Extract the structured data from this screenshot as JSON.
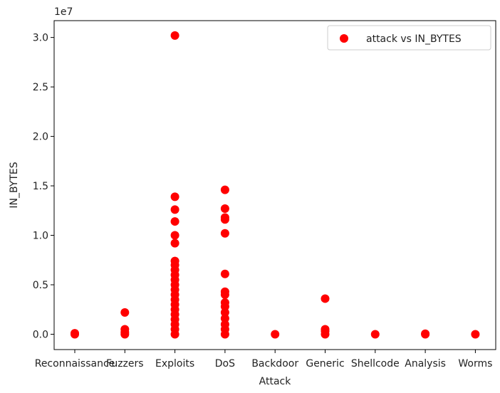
{
  "chart_data": {
    "type": "scatter",
    "xlabel": "Attack",
    "ylabel": "IN_BYTES",
    "y_offset_label": "1e7",
    "y_multiplier": 10000000,
    "categories": [
      "Reconnaissance",
      "Fuzzers",
      "Exploits",
      "DoS",
      "Backdoor",
      "Generic",
      "Shellcode",
      "Analysis",
      "Worms"
    ],
    "yticks": [
      0.0,
      0.5,
      1.0,
      1.5,
      2.0,
      2.5,
      3.0
    ],
    "ytick_labels": [
      "0.0",
      "0.5",
      "1.0",
      "1.5",
      "2.0",
      "2.5",
      "3.0"
    ],
    "ylim": [
      -0.155,
      3.17
    ],
    "grid": false,
    "legend_position": "top-right",
    "series": [
      {
        "name": "attack vs IN_BYTES",
        "color": "#ff0000",
        "marker": "circle",
        "points": [
          [
            "Reconnaissance",
            0.0
          ],
          [
            "Reconnaissance",
            0.01
          ],
          [
            "Fuzzers",
            0.0
          ],
          [
            "Fuzzers",
            0.02
          ],
          [
            "Fuzzers",
            0.05
          ],
          [
            "Fuzzers",
            0.22
          ],
          [
            "Exploits",
            0.0
          ],
          [
            "Exploits",
            0.05
          ],
          [
            "Exploits",
            0.1
          ],
          [
            "Exploits",
            0.15
          ],
          [
            "Exploits",
            0.2
          ],
          [
            "Exploits",
            0.25
          ],
          [
            "Exploits",
            0.3
          ],
          [
            "Exploits",
            0.35
          ],
          [
            "Exploits",
            0.4
          ],
          [
            "Exploits",
            0.45
          ],
          [
            "Exploits",
            0.5
          ],
          [
            "Exploits",
            0.55
          ],
          [
            "Exploits",
            0.6
          ],
          [
            "Exploits",
            0.65
          ],
          [
            "Exploits",
            0.7
          ],
          [
            "Exploits",
            0.74
          ],
          [
            "Exploits",
            0.92
          ],
          [
            "Exploits",
            1.0
          ],
          [
            "Exploits",
            1.14
          ],
          [
            "Exploits",
            1.26
          ],
          [
            "Exploits",
            1.39
          ],
          [
            "Exploits",
            3.02
          ],
          [
            "DoS",
            0.0
          ],
          [
            "DoS",
            0.05
          ],
          [
            "DoS",
            0.1
          ],
          [
            "DoS",
            0.16
          ],
          [
            "DoS",
            0.22
          ],
          [
            "DoS",
            0.28
          ],
          [
            "DoS",
            0.32
          ],
          [
            "DoS",
            0.4
          ],
          [
            "DoS",
            0.43
          ],
          [
            "DoS",
            0.61
          ],
          [
            "DoS",
            1.02
          ],
          [
            "DoS",
            1.16
          ],
          [
            "DoS",
            1.18
          ],
          [
            "DoS",
            1.27
          ],
          [
            "DoS",
            1.46
          ],
          [
            "Backdoor",
            0.0
          ],
          [
            "Generic",
            0.0
          ],
          [
            "Generic",
            0.03
          ],
          [
            "Generic",
            0.05
          ],
          [
            "Generic",
            0.36
          ],
          [
            "Shellcode",
            0.0
          ],
          [
            "Analysis",
            0.0
          ],
          [
            "Analysis",
            0.005
          ],
          [
            "Worms",
            0.0
          ]
        ]
      }
    ]
  }
}
